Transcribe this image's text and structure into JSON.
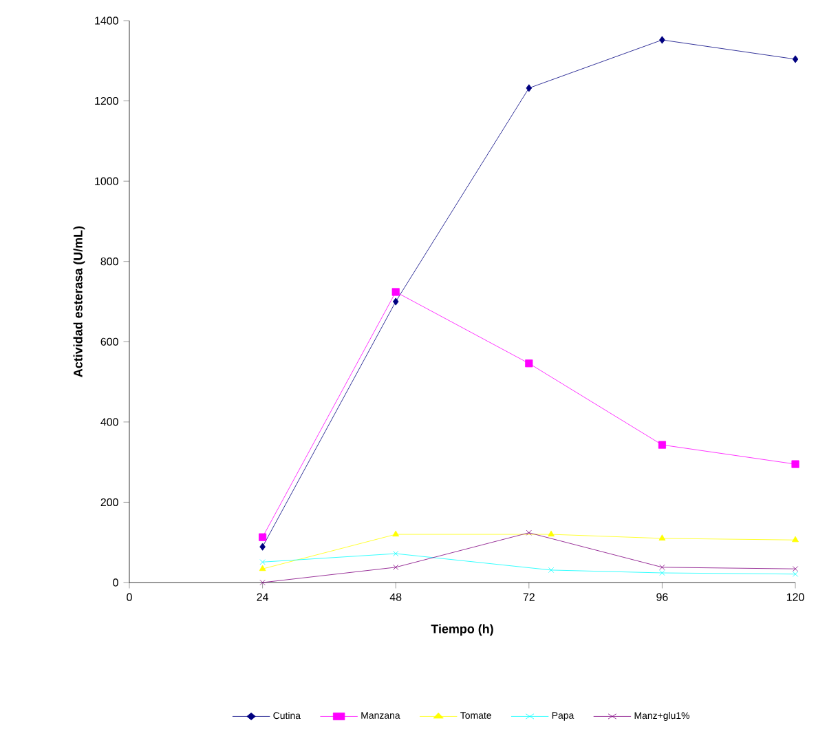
{
  "chart_data": {
    "type": "line",
    "xlabel": "Tiempo (h)",
    "ylabel": "Actividad esterasa (U/mL)",
    "xlim": [
      0,
      120
    ],
    "xticks": [
      0,
      24,
      48,
      72,
      96,
      120
    ],
    "ylim": [
      0,
      1400
    ],
    "yticks": [
      0,
      200,
      400,
      600,
      800,
      1000,
      1200,
      1400
    ],
    "legend": "bottom",
    "grid": false,
    "line_style": "solid",
    "series": [
      {
        "name": "Cutina",
        "color": "#000080",
        "marker": "diamond",
        "x": [
          24,
          48,
          72,
          96,
          120
        ],
        "values": [
          89,
          700,
          1232,
          1352,
          1304
        ]
      },
      {
        "name": "Manzana",
        "color": "#ff00ff",
        "marker": "square",
        "x": [
          24,
          48,
          72,
          96,
          120
        ],
        "values": [
          113,
          724,
          546,
          343,
          295
        ]
      },
      {
        "name": "Tomate",
        "color": "#ffff00",
        "marker": "triangle",
        "x": [
          24,
          48,
          76,
          96,
          120
        ],
        "values": [
          34,
          120,
          120,
          110,
          106
        ]
      },
      {
        "name": "Papa",
        "color": "#00ffff",
        "marker": "cross",
        "x": [
          24,
          48,
          76,
          96,
          120
        ],
        "values": [
          51,
          72,
          31,
          24,
          21
        ]
      },
      {
        "name": "Manz+glu1%",
        "color": "#800080",
        "marker": "cross",
        "x": [
          24,
          48,
          72,
          96,
          120
        ],
        "values": [
          0,
          38,
          124,
          38,
          34
        ]
      }
    ]
  }
}
